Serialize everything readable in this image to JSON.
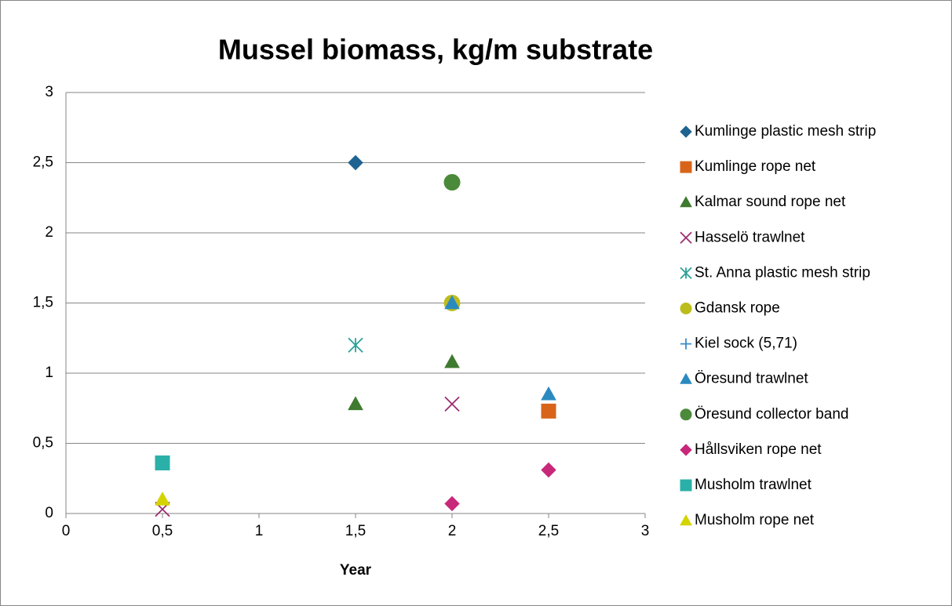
{
  "chart_data": {
    "type": "scatter",
    "title": "Mussel biomass, kg/m substrate",
    "x_label": "Year",
    "xlim": [
      0,
      3
    ],
    "ylim": [
      0,
      3
    ],
    "xticks": [
      0,
      {
        "value": 0.5,
        "label": "0,5"
      },
      1,
      {
        "value": 1.5,
        "label": "1,5"
      },
      2,
      {
        "value": 2.5,
        "label": "2,5"
      },
      3
    ],
    "yticks": [
      0,
      {
        "value": 0.5,
        "label": "0,5"
      },
      1,
      {
        "value": 1.5,
        "label": "1,5"
      },
      2,
      {
        "value": 2.5,
        "label": "2,5"
      },
      3
    ],
    "grid": true,
    "legend": "right",
    "series": [
      {
        "name": "Kumlinge plastic mesh strip",
        "color": "#1f6391",
        "marker": "diamond",
        "x": [
          1.5
        ],
        "values": [
          2.5
        ]
      },
      {
        "name": "Kumlinge rope net",
        "color": "#d8641a",
        "marker": "square",
        "x": [
          2.5
        ],
        "values": [
          0.73
        ]
      },
      {
        "name": "Kalmar sound rope net",
        "color": "#3e7a2f",
        "marker": "triangle",
        "x": [
          1.5,
          2
        ],
        "values": [
          0.78,
          1.08
        ]
      },
      {
        "name": "Hasselö trawlnet",
        "color": "#9b2d6e",
        "marker": "x",
        "x": [
          2,
          0.5
        ],
        "values": [
          0.78,
          0.03
        ]
      },
      {
        "name": "St. Anna plastic mesh strip",
        "color": "#2aa198",
        "marker": "asterisk",
        "x": [
          1.5
        ],
        "values": [
          1.2
        ]
      },
      {
        "name": "Gdansk rope",
        "color": "#bcbc1c",
        "marker": "circle",
        "x": [
          2
        ],
        "values": [
          1.5
        ]
      },
      {
        "name": "Kiel sock (5,71)",
        "color": "#3a8cc8",
        "marker": "plus",
        "x": [],
        "values": []
      },
      {
        "name": "Öresund trawlnet",
        "color": "#2a8ac0",
        "marker": "triangle",
        "x": [
          2,
          2.5
        ],
        "values": [
          1.5,
          0.85
        ]
      },
      {
        "name": "Öresund collector band",
        "color": "#4a8a3a",
        "marker": "circle",
        "x": [
          2
        ],
        "values": [
          2.36
        ]
      },
      {
        "name": "Hållsviken rope net",
        "color": "#c8287a",
        "marker": "diamond",
        "x": [
          2,
          2.5
        ],
        "values": [
          0.07,
          0.31
        ]
      },
      {
        "name": "Musholm trawlnet",
        "color": "#2ab0a8",
        "marker": "square",
        "x": [
          0.5
        ],
        "values": [
          0.36
        ]
      },
      {
        "name": "Musholm rope net",
        "color": "#d4d400",
        "marker": "triangle",
        "x": [
          0.5
        ],
        "values": [
          0.1
        ]
      }
    ]
  }
}
